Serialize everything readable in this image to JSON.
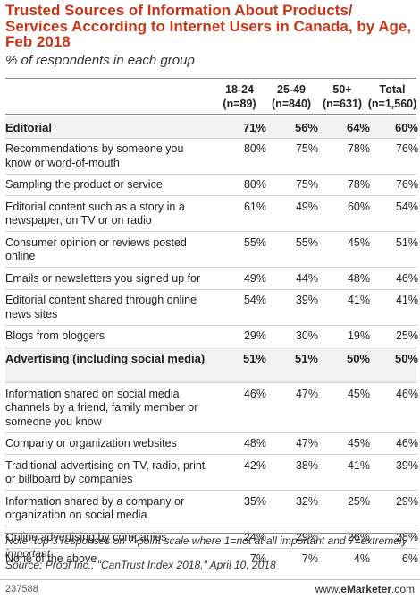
{
  "title": "Trusted Sources of Information About Products/ Services According to Internet Users in Canada, by Age, Feb 2018",
  "subtitle": "% of respondents in each group",
  "chart_data": {
    "type": "table",
    "columns": [
      {
        "label": "18-24",
        "sub": "(n=89)"
      },
      {
        "label": "25-49",
        "sub": "(n=840)"
      },
      {
        "label": "50+",
        "sub": "(n=631)"
      },
      {
        "label": "Total",
        "sub": "(n=1,560)"
      }
    ],
    "rows": [
      {
        "label": "Editorial",
        "category": true,
        "values": [
          "71%",
          "56%",
          "64%",
          "60%"
        ]
      },
      {
        "label": "Recommendations by someone you know or word-of-mouth",
        "category": false,
        "values": [
          "80%",
          "75%",
          "78%",
          "76%"
        ]
      },
      {
        "label": "Sampling the product or service",
        "category": false,
        "values": [
          "80%",
          "75%",
          "78%",
          "76%"
        ]
      },
      {
        "label": "Editorial content such as a story in a newspaper, on TV or on radio",
        "category": false,
        "values": [
          "61%",
          "49%",
          "60%",
          "54%"
        ]
      },
      {
        "label": "Consumer opinion or reviews posted online",
        "category": false,
        "values": [
          "55%",
          "55%",
          "45%",
          "51%"
        ]
      },
      {
        "label": "Emails or newsletters you signed up for",
        "category": false,
        "values": [
          "49%",
          "44%",
          "48%",
          "46%"
        ]
      },
      {
        "label": "Editorial content shared through online news sites",
        "category": false,
        "values": [
          "54%",
          "39%",
          "41%",
          "41%"
        ]
      },
      {
        "label": "Blogs from bloggers",
        "category": false,
        "values": [
          "29%",
          "30%",
          "19%",
          "25%"
        ]
      },
      {
        "label": "Advertising (including social media)",
        "category": true,
        "values": [
          "51%",
          "51%",
          "50%",
          "50%"
        ]
      },
      {
        "label": "Information shared on social media channels by a friend, family member or someone you know",
        "category": false,
        "values": [
          "46%",
          "47%",
          "45%",
          "46%"
        ]
      },
      {
        "label": "Company or organization websites",
        "category": false,
        "values": [
          "48%",
          "47%",
          "45%",
          "46%"
        ]
      },
      {
        "label": "Traditional advertising on TV, radio, print or billboard by companies",
        "category": false,
        "values": [
          "42%",
          "38%",
          "41%",
          "39%"
        ]
      },
      {
        "label": "Information shared by a company or organization on social media",
        "category": false,
        "values": [
          "35%",
          "32%",
          "25%",
          "29%"
        ]
      },
      {
        "label": "Online advertising by companies",
        "category": false,
        "values": [
          "24%",
          "29%",
          "26%",
          "28%"
        ]
      },
      {
        "label": "None of the above",
        "category": false,
        "values": [
          "7%",
          "7%",
          "4%",
          "6%"
        ]
      }
    ]
  },
  "note": "Note: top 3 responses on 7-point scale where 1=not at all important and 7=extremely important",
  "source": "Source: Proof Inc., \"CanTrust Index 2018,\" April 10, 2018",
  "footer": {
    "id": "237588",
    "brand_prefix": "www.",
    "brand_name": "eMarketer",
    "brand_suffix": ".com"
  },
  "colors": {
    "title": "#c8361a"
  }
}
